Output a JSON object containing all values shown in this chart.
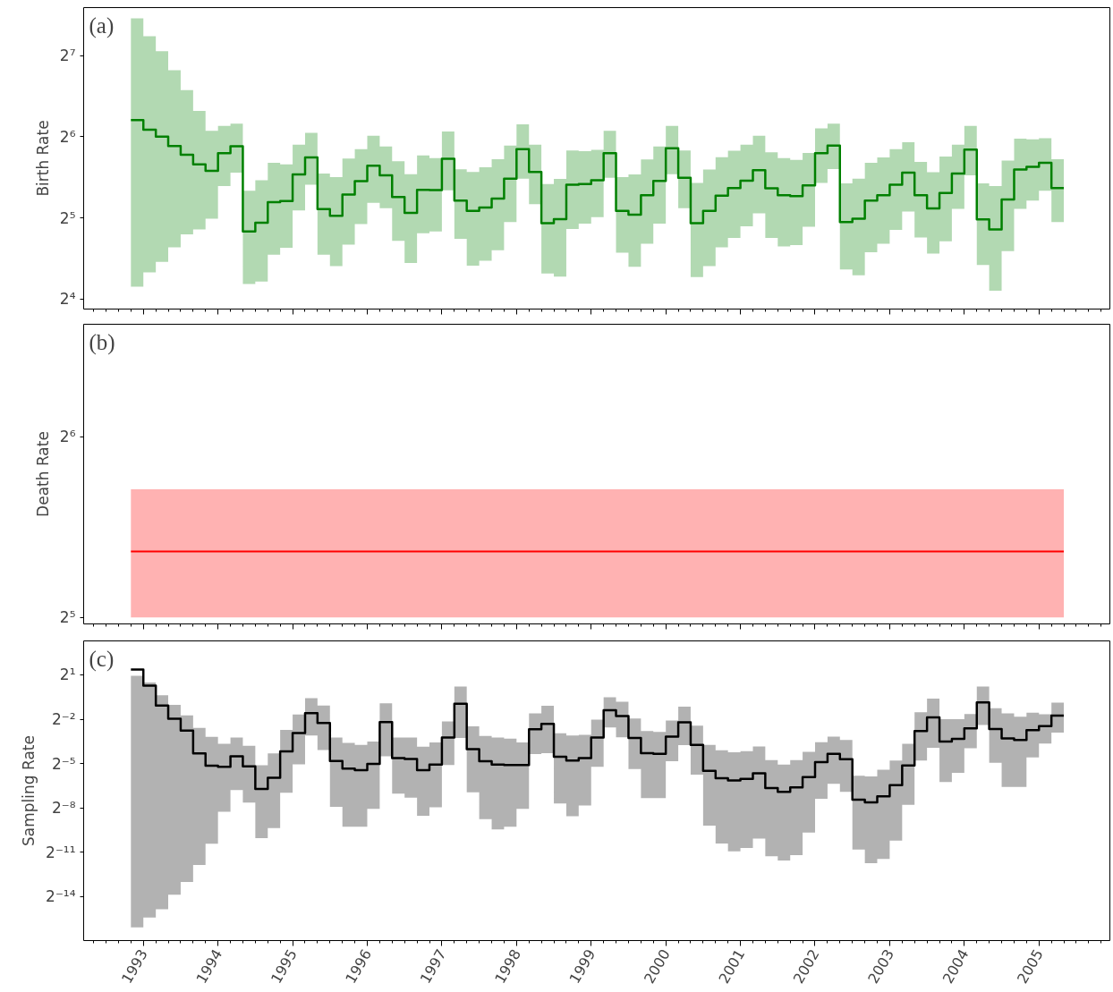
{
  "chart_data": [
    {
      "type": "step",
      "ylabel": "Birth Rate",
      "annotations": [
        "(a)"
      ],
      "log": true,
      "tick_labels": "y",
      "xlim": [
        1992.2,
        2005.95
      ],
      "ylim": [
        14.7,
        193
      ],
      "xticks": [
        1993,
        1994,
        1995,
        1996,
        1997,
        1998,
        1999,
        2000,
        2001,
        2002,
        2003,
        2004,
        2005
      ],
      "yticks": [
        {
          "value": 16,
          "label": "2⁴"
        },
        {
          "value": 32,
          "label": "2⁵"
        },
        {
          "value": 64,
          "label": "2⁶"
        },
        {
          "value": 128,
          "label": "2⁷"
        }
      ],
      "x": [
        1992.833,
        1993,
        1993.167,
        1993.333,
        1993.5,
        1993.667,
        1993.833,
        1994,
        1994.167,
        1994.333,
        1994.5,
        1994.667,
        1994.833,
        1995,
        1995.167,
        1995.333,
        1995.5,
        1995.667,
        1995.833,
        1996,
        1996.167,
        1996.333,
        1996.5,
        1996.667,
        1996.833,
        1997,
        1997.167,
        1997.333,
        1997.5,
        1997.667,
        1997.833,
        1998,
        1998.167,
        1998.333,
        1998.5,
        1998.667,
        1998.833,
        1999,
        1999.167,
        1999.333,
        1999.5,
        1999.667,
        1999.833,
        2000,
        2000.167,
        2000.333,
        2000.5,
        2000.667,
        2000.833,
        2001,
        2001.167,
        2001.333,
        2001.5,
        2001.667,
        2001.833,
        2002,
        2002.167,
        2002.333,
        2002.5,
        2002.667,
        2002.833,
        2003,
        2003.167,
        2003.333,
        2003.5,
        2003.667,
        2003.833,
        2004,
        2004.167,
        2004.333,
        2004.5,
        2004.667,
        2004.833,
        2005,
        2005.167,
        2005.333
      ],
      "series": [
        {
          "color": "#008000",
          "values": [
            73.8,
            68.0,
            64.1,
            59.2,
            54.9,
            50.6,
            47.9,
            55.7,
            59.0,
            28.5,
            30.7,
            36.6,
            37.0,
            46.4,
            53.7,
            34.5,
            32.6,
            39.1,
            43.8,
            50.0,
            46.1,
            38.3,
            33.4,
            40.7,
            40.6,
            53.1,
            37.1,
            34.0,
            35.0,
            37.8,
            44.8,
            57.6,
            47.4,
            30.6,
            31.7,
            42.5,
            42.8,
            44.2,
            55.7,
            34.0,
            32.9,
            38.9,
            43.9,
            58.1,
            45.1,
            30.6,
            34.0,
            38.7,
            41.3,
            44.0,
            48.1,
            41.2,
            38.9,
            38.6,
            42.3,
            55.7,
            59.4,
            30.9,
            31.8,
            37.1,
            38.9,
            42.5,
            47.1,
            38.9,
            34.7,
            39.6,
            46.8,
            57.4,
            31.6,
            29.0,
            37.5,
            48.4,
            49.5,
            51.3,
            41.3,
            41.3
          ],
          "upper": [
            176,
            151,
            133,
            113,
            95.3,
            79.9,
            67.4,
            70.2,
            71.6,
            40.4,
            44.2,
            51.3,
            50.6,
            59.9,
            66.2,
            46.8,
            45.4,
            53.2,
            57.6,
            64.6,
            58.9,
            52.0,
            46.5,
            54.6,
            53.4,
            67.0,
            48.5,
            47.4,
            49.3,
            52.9,
            59.4,
            71.2,
            59.9,
            42.8,
            44.7,
            56.9,
            56.6,
            57.3,
            67.4,
            45.4,
            46.4,
            52.8,
            58.9,
            70.3,
            56.9,
            43.2,
            48.4,
            53.8,
            56.8,
            59.9,
            64.6,
            56.1,
            53.4,
            52.6,
            55.8,
            68.8,
            71.6,
            43.0,
            44.8,
            51.3,
            53.7,
            57.6,
            61.1,
            51.7,
            47.3,
            54.1,
            59.8,
            70.2,
            43.0,
            42.0,
            52.3,
            63.0,
            62.7,
            63.2,
            52.9,
            52.9
          ],
          "lower": [
            17.8,
            20.1,
            22.0,
            24.9,
            27.8,
            29.0,
            31.8,
            42.0,
            47.1,
            18.2,
            18.6,
            23.4,
            24.8,
            34.1,
            42.5,
            23.4,
            21.2,
            25.5,
            30.4,
            36.4,
            34.8,
            26.3,
            21.8,
            28.1,
            28.5,
            40.5,
            26.8,
            21.3,
            22.2,
            24.3,
            30.9,
            44.8,
            36.0,
            19.9,
            19.4,
            29.1,
            30.5,
            32.2,
            45.1,
            23.8,
            21.1,
            25.7,
            30.5,
            46.5,
            34.8,
            19.3,
            21.2,
            24.9,
            27.0,
            29.8,
            33.3,
            27.0,
            25.1,
            25.4,
            29.7,
            43.2,
            48.6,
            20.6,
            19.6,
            23.9,
            25.7,
            28.9,
            33.8,
            27.1,
            23.6,
            26.2,
            34.6,
            46.1,
            21.4,
            17.2,
            24.1,
            34.6,
            37.1,
            40.4,
            30.9,
            30.9
          ]
        }
      ]
    },
    {
      "type": "line",
      "ylabel": "Death Rate",
      "annotations": [
        "(b)"
      ],
      "log": true,
      "tick_labels": "y",
      "xlim": [
        1992.2,
        2005.95
      ],
      "ylim": [
        31.2,
        98.6
      ],
      "xticks": [
        1993,
        1994,
        1995,
        1996,
        1997,
        1998,
        1999,
        2000,
        2001,
        2002,
        2003,
        2004,
        2005
      ],
      "yticks": [
        {
          "value": 32,
          "label": "2⁵"
        },
        {
          "value": 64,
          "label": "2⁶"
        }
      ],
      "x": [
        1992.833,
        2005.333
      ],
      "series": [
        {
          "color": "#ff0000",
          "values": [
            41.2,
            41.2
          ],
          "upper": [
            52.3,
            52.3
          ],
          "lower": [
            32,
            32
          ]
        }
      ]
    },
    {
      "type": "step",
      "ylabel": "Sampling Rate",
      "annotations": [
        "(c)"
      ],
      "log": true,
      "xlim": [
        1992.2,
        2005.95
      ],
      "ylim": [
        7.8e-06,
        9.8
      ],
      "xticks": [
        1993,
        1994,
        1995,
        1996,
        1997,
        1998,
        1999,
        2000,
        2001,
        2002,
        2003,
        2004,
        2005
      ],
      "yticks": [
        {
          "value": 6.103515625e-05,
          "label": "2⁻¹⁴"
        },
        {
          "value": 0.00048828125,
          "label": "2⁻¹¹"
        },
        {
          "value": 0.00390625,
          "label": "2⁻⁸"
        },
        {
          "value": 0.03125,
          "label": "2⁻⁵"
        },
        {
          "value": 0.25,
          "label": "2⁻²"
        },
        {
          "value": 2,
          "label": "2¹"
        }
      ],
      "x": [
        1992.833,
        1993,
        1993.167,
        1993.333,
        1993.5,
        1993.667,
        1993.833,
        1994,
        1994.167,
        1994.333,
        1994.5,
        1994.667,
        1994.833,
        1995,
        1995.167,
        1995.333,
        1995.5,
        1995.667,
        1995.833,
        1996,
        1996.167,
        1996.333,
        1996.5,
        1996.667,
        1996.833,
        1997,
        1997.167,
        1997.333,
        1997.5,
        1997.667,
        1997.833,
        1998,
        1998.167,
        1998.333,
        1998.5,
        1998.667,
        1998.833,
        1999,
        1999.167,
        1999.333,
        1999.5,
        1999.667,
        1999.833,
        2000,
        2000.167,
        2000.333,
        2000.5,
        2000.667,
        2000.833,
        2001,
        2001.167,
        2001.333,
        2001.5,
        2001.667,
        2001.833,
        2002,
        2002.167,
        2002.333,
        2002.5,
        2002.667,
        2002.833,
        2003,
        2003.167,
        2003.333,
        2003.5,
        2003.667,
        2003.833,
        2004,
        2004.167,
        2004.333,
        2004.5,
        2004.667,
        2004.833,
        2005,
        2005.167,
        2005.333
      ],
      "series": [
        {
          "color": "#000000",
          "values": [
            2.56,
            1.2,
            0.475,
            0.255,
            0.146,
            0.0503,
            0.0284,
            0.0267,
            0.0438,
            0.0275,
            0.00947,
            0.016,
            0.0553,
            0.131,
            0.332,
            0.209,
            0.0353,
            0.0247,
            0.0229,
            0.0307,
            0.219,
            0.0405,
            0.0387,
            0.0229,
            0.0297,
            0.106,
            0.513,
            0.0616,
            0.0347,
            0.0297,
            0.0293,
            0.0293,
            0.156,
            0.2,
            0.0431,
            0.0358,
            0.0405,
            0.106,
            0.379,
            0.291,
            0.104,
            0.0508,
            0.0493,
            0.111,
            0.216,
            0.075,
            0.0222,
            0.0158,
            0.0142,
            0.0153,
            0.0197,
            0.0099,
            0.00834,
            0.0102,
            0.0165,
            0.0334,
            0.0493,
            0.0384,
            0.00574,
            0.00507,
            0.00671,
            0.0114,
            0.0286,
            0.144,
            0.273,
            0.0876,
            0.0993,
            0.163,
            0.551,
            0.158,
            0.102,
            0.0947,
            0.149,
            0.18,
            0.296,
            0.296
          ],
          "upper": [
            1.91,
            1.4,
            0.766,
            0.489,
            0.298,
            0.166,
            0.109,
            0.0788,
            0.106,
            0.0718,
            0.0288,
            0.0503,
            0.151,
            0.313,
            0.667,
            0.475,
            0.106,
            0.0826,
            0.0753,
            0.0878,
            0.529,
            0.106,
            0.106,
            0.0686,
            0.0839,
            0.226,
            1.16,
            0.179,
            0.114,
            0.106,
            0.101,
            0.0839,
            0.327,
            0.467,
            0.129,
            0.116,
            0.12,
            0.245,
            0.696,
            0.568,
            0.257,
            0.144,
            0.138,
            0.234,
            0.45,
            0.185,
            0.075,
            0.0585,
            0.0533,
            0.0558,
            0.0694,
            0.0367,
            0.0299,
            0.0367,
            0.0541,
            0.085,
            0.111,
            0.0947,
            0.0176,
            0.0171,
            0.0233,
            0.0361,
            0.0786,
            0.345,
            0.654,
            0.249,
            0.249,
            0.319,
            1.16,
            0.416,
            0.33,
            0.282,
            0.34,
            0.315,
            0.542,
            0.542
          ],
          "lower": [
            1.45e-05,
            2.3e-05,
            3.39e-05,
            6.7e-05,
            0.000122,
            0.00027,
            0.000726,
            0.00326,
            0.00904,
            0.00502,
            0.000944,
            0.00152,
            0.00799,
            0.0302,
            0.116,
            0.0588,
            0.00411,
            0.00162,
            0.00162,
            0.00374,
            0.0438,
            0.00763,
            0.00633,
            0.0027,
            0.00404,
            0.0293,
            0.104,
            0.00811,
            0.00232,
            0.00143,
            0.00162,
            0.00374,
            0.0488,
            0.0511,
            0.00479,
            0.00266,
            0.00437,
            0.0268,
            0.169,
            0.107,
            0.0241,
            0.00621,
            0.00621,
            0.035,
            0.0739,
            0.0185,
            0.0017,
            0.000734,
            0.000513,
            0.0006,
            0.000928,
            0.000406,
            0.000332,
            0.000426,
            0.00123,
            0.00602,
            0.0121,
            0.00834,
            0.000555,
            0.000293,
            0.000359,
            0.000845,
            0.00454,
            0.0361,
            0.0652,
            0.0131,
            0.0203,
            0.0642,
            0.191,
            0.0323,
            0.0104,
            0.0105,
            0.0415,
            0.0798,
            0.134,
            0.134
          ]
        }
      ]
    }
  ]
}
